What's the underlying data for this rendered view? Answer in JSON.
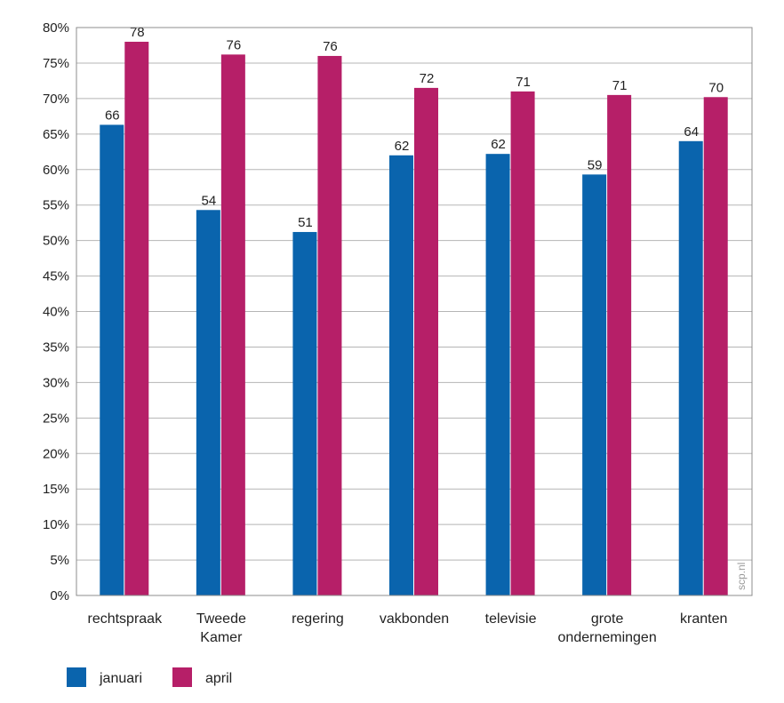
{
  "chart_data": {
    "type": "bar",
    "categories": [
      [
        "rechtspraak"
      ],
      [
        "Tweede",
        "Kamer"
      ],
      [
        "regering"
      ],
      [
        "vakbonden"
      ],
      [
        "televisie"
      ],
      [
        "grote",
        "ondernemingen"
      ],
      [
        "kranten"
      ]
    ],
    "series": [
      {
        "name": "januari",
        "color": "#0a64ad",
        "values": [
          66.3,
          54.3,
          51.2,
          62.0,
          62.2,
          59.3,
          64.0
        ],
        "labels": [
          "66",
          "54",
          "51",
          "62",
          "62",
          "59",
          "64"
        ]
      },
      {
        "name": "april",
        "color": "#b61f68",
        "values": [
          78.0,
          76.2,
          76.0,
          71.5,
          71.0,
          70.5,
          70.2
        ],
        "labels": [
          "78",
          "76",
          "76",
          "72",
          "71",
          "71",
          "70"
        ]
      }
    ],
    "ylim": [
      0,
      80
    ],
    "yticks": [
      "0%",
      "5%",
      "10%",
      "15%",
      "20%",
      "25%",
      "30%",
      "35%",
      "40%",
      "45%",
      "50%",
      "55%",
      "60%",
      "65%",
      "70%",
      "75%",
      "80%"
    ],
    "ytick_values": [
      0,
      5,
      10,
      15,
      20,
      25,
      30,
      35,
      40,
      45,
      50,
      55,
      60,
      65,
      70,
      75,
      80
    ],
    "grid": true,
    "legend": "bottom-left",
    "title": "",
    "xlabel": "",
    "ylabel": ""
  },
  "watermark": "scp.nl"
}
